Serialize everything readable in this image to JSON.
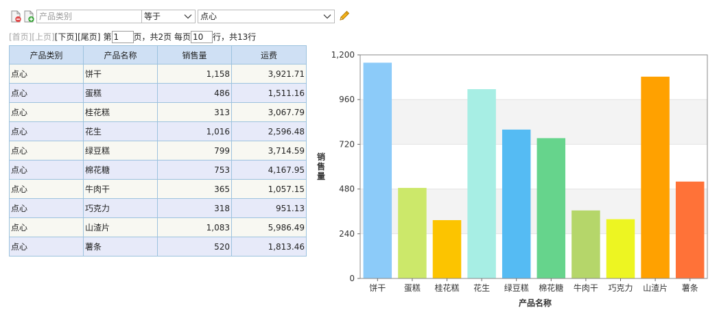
{
  "toolbar": {
    "field_placeholder": "产品类别",
    "operator": "等于",
    "value": "点心"
  },
  "pager": {
    "first": "[首页]",
    "prev": "[上页]",
    "next": "[下页]",
    "last": "[尾页]",
    "page_prefix": "第",
    "current_page": "1",
    "page_suffix": "页，共2页 每页",
    "page_size": "10",
    "size_suffix": "行，共13行"
  },
  "table": {
    "columns": [
      "产品类别",
      "产品名称",
      "销售量",
      "运费"
    ],
    "rows": [
      [
        "点心",
        "饼干",
        "1,158",
        "3,921.71"
      ],
      [
        "点心",
        "蛋糕",
        "486",
        "1,511.16"
      ],
      [
        "点心",
        "桂花糕",
        "313",
        "3,067.79"
      ],
      [
        "点心",
        "花生",
        "1,016",
        "2,596.48"
      ],
      [
        "点心",
        "绿豆糕",
        "799",
        "3,714.59"
      ],
      [
        "点心",
        "棉花糖",
        "753",
        "4,167.95"
      ],
      [
        "点心",
        "牛肉干",
        "365",
        "1,057.15"
      ],
      [
        "点心",
        "巧克力",
        "318",
        "951.13"
      ],
      [
        "点心",
        "山渣片",
        "1,083",
        "5,986.49"
      ],
      [
        "点心",
        "薯条",
        "520",
        "1,813.46"
      ]
    ]
  },
  "chart_data": {
    "type": "bar",
    "categories": [
      "饼干",
      "蛋糕",
      "桂花糕",
      "花生",
      "绿豆糕",
      "棉花糖",
      "牛肉干",
      "巧克力",
      "山渣片",
      "薯条"
    ],
    "values": [
      1158,
      486,
      313,
      1016,
      799,
      753,
      365,
      318,
      1083,
      520
    ],
    "colors": [
      "#8ccbf9",
      "#cce86a",
      "#fcc400",
      "#a7eee4",
      "#55bbf3",
      "#66d48c",
      "#b5d66a",
      "#edf522",
      "#ffa100",
      "#ff7238"
    ],
    "xlabel": "产品名称",
    "ylabel": "销售量",
    "ylim": [
      0,
      1200
    ],
    "yticks": [
      "0",
      "240",
      "480",
      "720",
      "960",
      "1,200"
    ],
    "grid": true,
    "grid_band_color": "#f3f3f3"
  }
}
